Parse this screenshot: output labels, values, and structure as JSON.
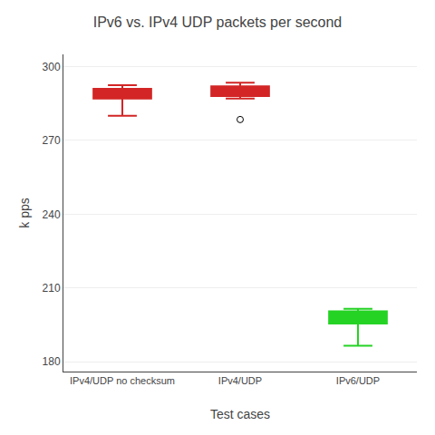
{
  "chart_data": {
    "type": "box",
    "title": "IPv6 vs. IPv4 UDP packets per second",
    "xlabel": "Test cases",
    "ylabel": "k pps",
    "categories": [
      "IPv4/UDP no checksum",
      "IPv4/UDP",
      "IPv6/UDP"
    ],
    "colors": [
      "#cc0000",
      "#cc0000",
      "#00cc00"
    ],
    "boxes": [
      {
        "q1": 287.0,
        "median": 288.5,
        "q3": 291.0,
        "whislo": 280.0,
        "whishi": 292.5,
        "fliers": []
      },
      {
        "q1": 288.0,
        "median": 289.5,
        "q3": 292.0,
        "whislo": 287.0,
        "whishi": 293.5,
        "fliers": [
          278.5
        ]
      },
      {
        "q1": 195.5,
        "median": 197.0,
        "q3": 200.5,
        "whislo": 186.5,
        "whishi": 201.5,
        "fliers": []
      }
    ],
    "ylim": [
      176,
      305
    ],
    "yticks": [
      180,
      210,
      240,
      270,
      300
    ],
    "grid": true
  }
}
